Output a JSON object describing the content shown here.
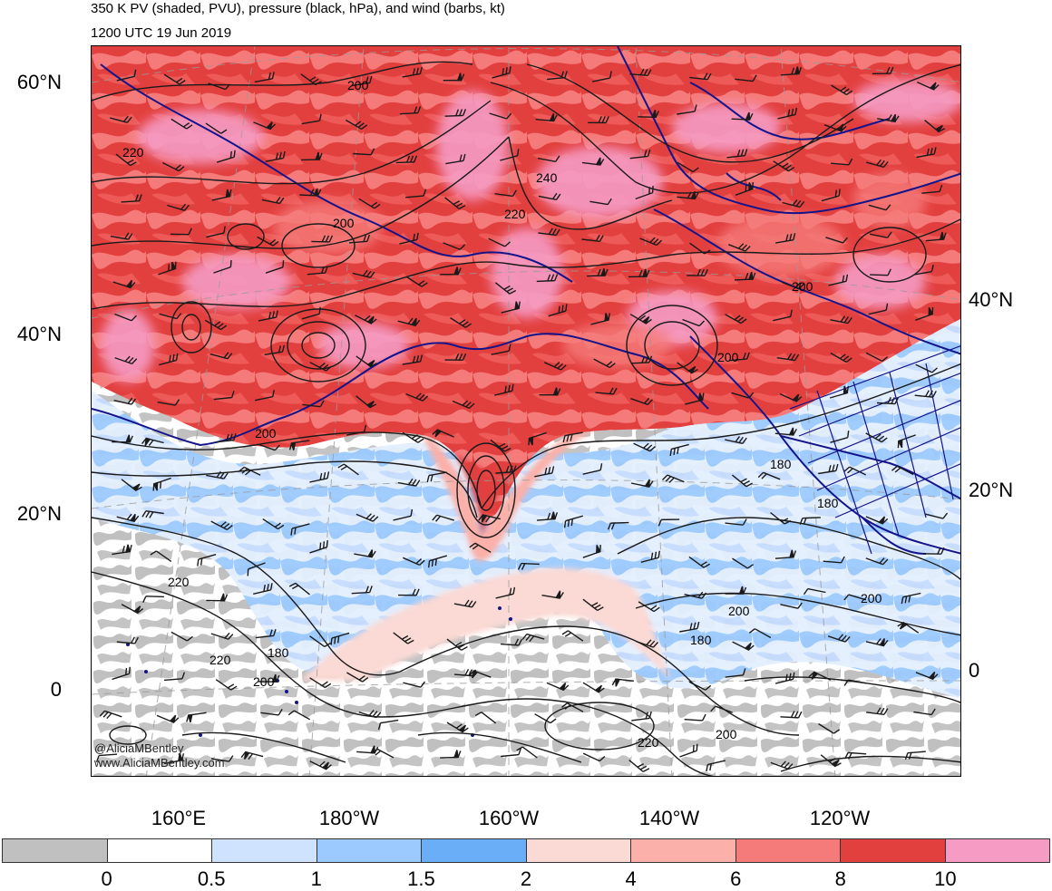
{
  "title": {
    "line1": "350 K PV (shaded, PVU), pressure (black, hPa), and wind (barbs, kt)",
    "line2": "1200 UTC 19 Jun 2019"
  },
  "axes": {
    "lat_left": [
      {
        "label": "60°N",
        "value": 60
      },
      {
        "label": "40°N",
        "value": 40
      },
      {
        "label": "20°N",
        "value": 20
      },
      {
        "label": "0",
        "value": 0
      }
    ],
    "lat_right": [
      {
        "label": "40°N",
        "value": 40
      },
      {
        "label": "20°N",
        "value": 20
      },
      {
        "label": "0",
        "value": 0
      }
    ],
    "lon_bottom": [
      {
        "label": "160°E",
        "value": 160
      },
      {
        "label": "180°W",
        "value": 180
      },
      {
        "label": "160°W",
        "value": -160
      },
      {
        "label": "140°W",
        "value": -140
      },
      {
        "label": "120°W",
        "value": -120
      }
    ]
  },
  "colorbar": {
    "colors": [
      "#c0c0c0",
      "#ffffff",
      "#cfe3ff",
      "#9ccafe",
      "#6aaef8",
      "#fbd9d4",
      "#fbb0a9",
      "#f57b7a",
      "#e2403f",
      "#f59bc4"
    ],
    "labels": [
      "0",
      "0.5",
      "1",
      "1.5",
      "2",
      "4",
      "6",
      "8",
      "10"
    ]
  },
  "contour_labels": [
    "200",
    "220",
    "240",
    "220",
    "200",
    "200",
    "200",
    "200",
    "180",
    "180",
    "200",
    "200",
    "180",
    "220",
    "200",
    "220",
    "180",
    "200",
    "220"
  ],
  "credit": {
    "line1": "@AliciaMBentley",
    "line2": "www.AliciaMBentley.com"
  },
  "colors": {
    "coastline": "#14148a",
    "contour": "#1a1a1a",
    "grid": "#9a9a9a"
  }
}
